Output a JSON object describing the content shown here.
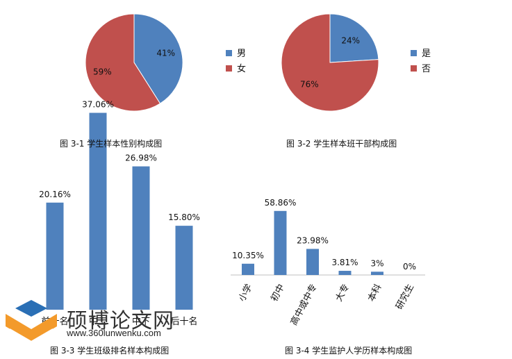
{
  "colors": {
    "blue": "#4f81bd",
    "red": "#c0504d",
    "grey": "#7f7f7f",
    "logo_orange": "#f39a2b",
    "logo_blue": "#2a6fb5"
  },
  "captions": {
    "fig1": "图 3-1  学生样本性别构成图",
    "fig2": "图 3-2  学生样本班干部构成图",
    "fig3": "图 3-3 学生班级排名样本构成图",
    "fig4": "图 3-4 学生监护人学历样本构成图"
  },
  "watermark": {
    "title": "硕博论文网",
    "url": "www.360lunwenku.com"
  },
  "chart_data": [
    {
      "type": "pie",
      "labels": [
        "男",
        "女"
      ],
      "values": [
        41,
        59
      ],
      "data_labels": [
        "41%",
        "59%"
      ],
      "colors": [
        "#4f81bd",
        "#c0504d"
      ],
      "legend": "right"
    },
    {
      "type": "pie",
      "labels": [
        "是",
        "否"
      ],
      "values": [
        24,
        76
      ],
      "data_labels": [
        "24%",
        "76%"
      ],
      "colors": [
        "#4f81bd",
        "#c0504d"
      ],
      "legend": "right"
    },
    {
      "type": "bar",
      "categories": [
        "前十名",
        "中上",
        "中下",
        "后十名"
      ],
      "values": [
        20.16,
        37.06,
        26.98,
        15.8
      ],
      "data_labels": [
        "20.16%",
        "37.06%",
        "26.98%",
        "15.80%"
      ],
      "ylim": [
        0,
        40
      ]
    },
    {
      "type": "bar",
      "categories": [
        "小学",
        "初中",
        "高中或中专",
        "大专",
        "本科",
        "研究生"
      ],
      "values": [
        10.35,
        58.86,
        23.98,
        3.81,
        3,
        0
      ],
      "data_labels": [
        "10.35%",
        "58.86%",
        "23.98%",
        "3.81%",
        "3%",
        "0%"
      ],
      "ylim": [
        0,
        60
      ]
    }
  ]
}
